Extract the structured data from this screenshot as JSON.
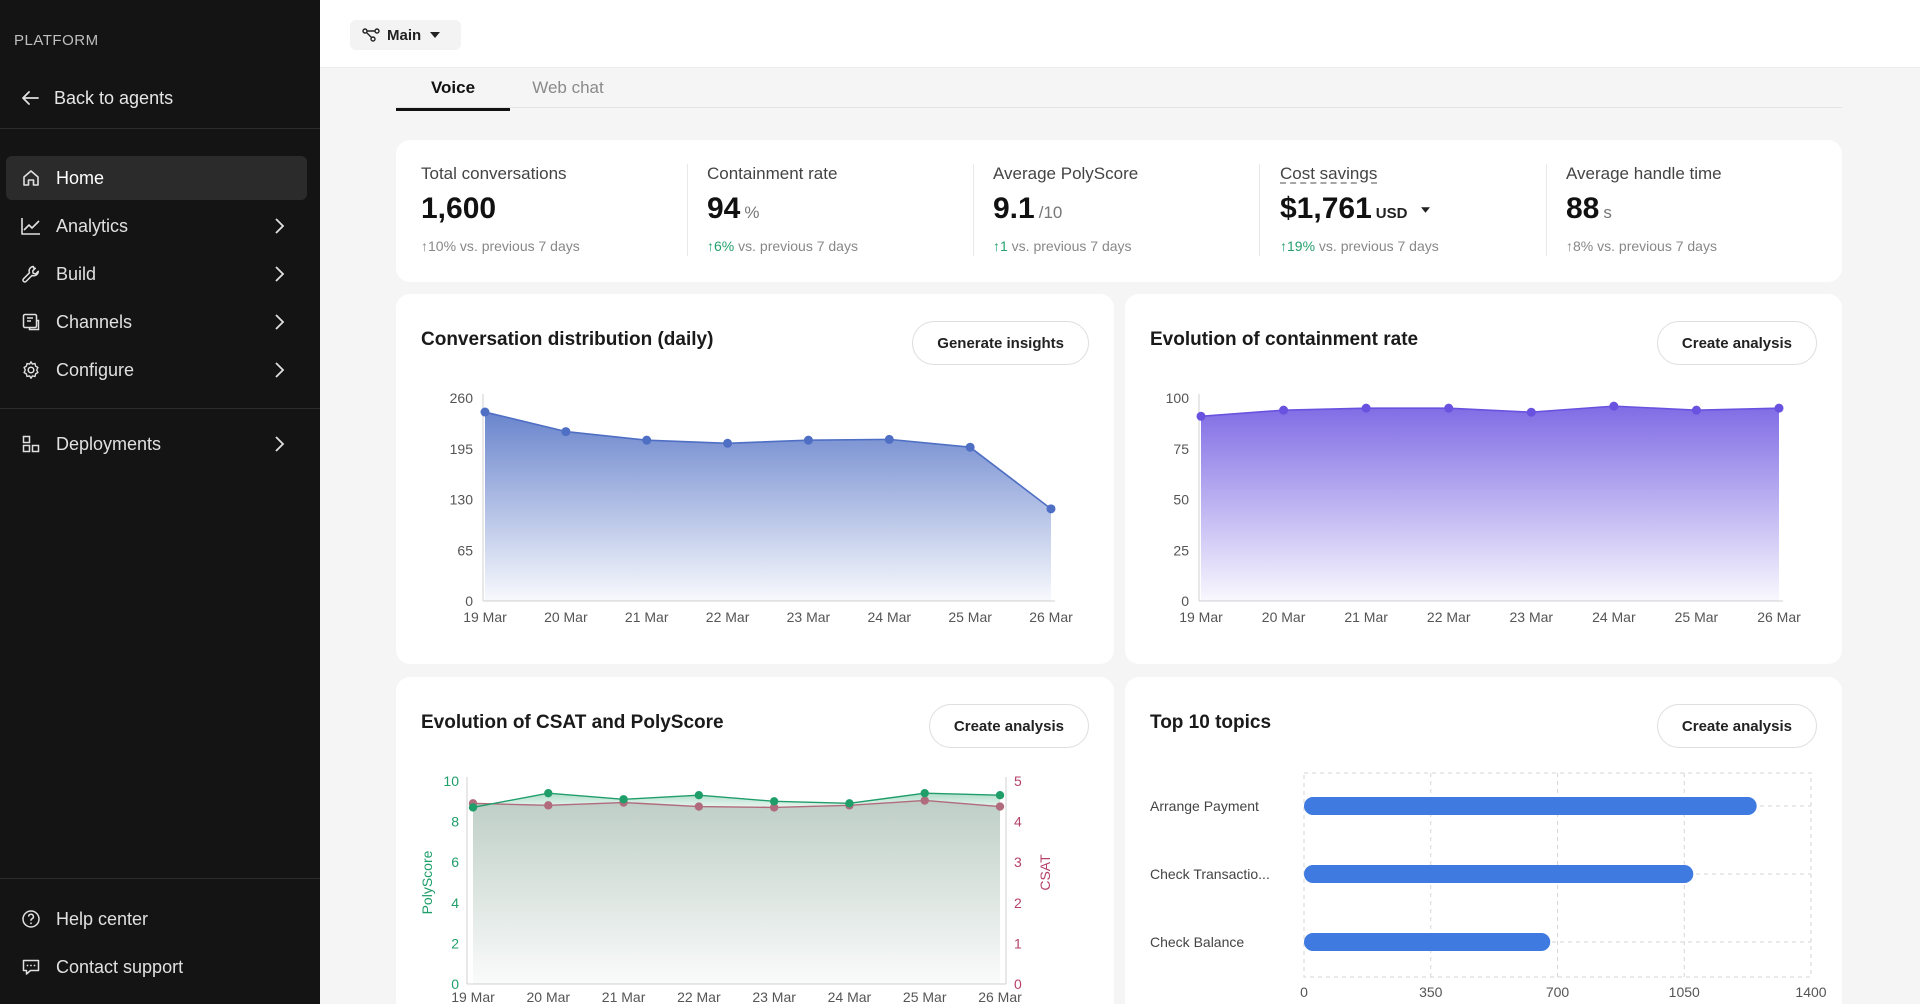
{
  "sidebar": {
    "platform_label": "PLATFORM",
    "back_label": "Back to agents",
    "items": [
      {
        "label": "Home",
        "icon": "home-icon",
        "active": true
      },
      {
        "label": "Analytics",
        "icon": "analytics-icon"
      },
      {
        "label": "Build",
        "icon": "wrench-icon"
      },
      {
        "label": "Channels",
        "icon": "channels-icon"
      },
      {
        "label": "Configure",
        "icon": "gear-icon"
      },
      {
        "label": "Deployments",
        "icon": "deployments-icon"
      }
    ],
    "footer": [
      {
        "label": "Help center",
        "icon": "help-icon"
      },
      {
        "label": "Contact support",
        "icon": "support-icon"
      }
    ]
  },
  "topbar": {
    "branch_label": "Main"
  },
  "tabs": [
    {
      "label": "Voice",
      "active": true
    },
    {
      "label": "Web chat"
    }
  ],
  "kpis": [
    {
      "label": "Total conversations",
      "value": "1,600",
      "unit": "",
      "change": "10%",
      "suffix": " vs. previous 7 days",
      "trend": "neutral"
    },
    {
      "label": "Containment rate",
      "value": "94",
      "unit": "%",
      "change": "6%",
      "suffix": " vs. previous 7 days",
      "trend": "positive"
    },
    {
      "label": "Average PolyScore",
      "value": "9.1",
      "unit": "/10",
      "change": "1",
      "suffix": " vs. previous 7 days",
      "trend": "positive"
    },
    {
      "label": "Cost savings",
      "value": "$1,761",
      "unit": "USD",
      "change": "19%",
      "suffix": " vs. previous 7 days",
      "trend": "positive"
    },
    {
      "label": "Average handle time",
      "value": "88",
      "unit": "s",
      "change": "8%",
      "suffix": " vs. previous 7 days",
      "trend": "neutral"
    }
  ],
  "cards": {
    "distribution": {
      "title": "Conversation distribution (daily)",
      "button": "Generate insights"
    },
    "containment": {
      "title": "Evolution of containment rate",
      "button": "Create analysis"
    },
    "csat": {
      "title": "Evolution of CSAT and PolyScore",
      "button": "Create analysis"
    },
    "topics": {
      "title": "Top 10 topics",
      "button": "Create analysis"
    }
  },
  "chart_data": [
    {
      "type": "area",
      "title": "Conversation distribution (daily)",
      "categories": [
        "19 Mar",
        "20 Mar",
        "21 Mar",
        "22 Mar",
        "23 Mar",
        "24 Mar",
        "25 Mar",
        "26 Mar"
      ],
      "values": [
        242,
        217,
        206,
        202,
        206,
        207,
        197,
        118
      ],
      "ylim": [
        0,
        260
      ],
      "yticks": [
        0,
        65,
        130,
        195,
        260
      ],
      "color": "#4f6fc4"
    },
    {
      "type": "area",
      "title": "Evolution of containment rate",
      "categories": [
        "19 Mar",
        "20 Mar",
        "21 Mar",
        "22 Mar",
        "23 Mar",
        "24 Mar",
        "25 Mar",
        "26 Mar"
      ],
      "values": [
        91,
        94,
        95,
        95,
        93,
        96,
        94,
        95
      ],
      "ylim": [
        0,
        100
      ],
      "yticks": [
        0,
        25,
        50,
        75,
        100
      ],
      "color": "#6a52e0"
    },
    {
      "type": "line",
      "title": "Evolution of CSAT and PolyScore",
      "categories": [
        "19 Mar",
        "20 Mar",
        "21 Mar",
        "22 Mar",
        "23 Mar",
        "24 Mar",
        "25 Mar",
        "26 Mar"
      ],
      "y_left": {
        "label": "PolyScore",
        "ticks": [
          0,
          2,
          4,
          6,
          8,
          10
        ],
        "range": [
          0,
          10
        ],
        "color": "#1f9e6a"
      },
      "y_right": {
        "label": "CSAT",
        "ticks": [
          0,
          1,
          2,
          3,
          4,
          5
        ],
        "range": [
          0,
          5
        ],
        "color": "#b5416a"
      },
      "series": [
        {
          "name": "PolyScore",
          "axis": "left",
          "values": [
            8.7,
            9.4,
            9.1,
            9.3,
            9.0,
            8.9,
            9.4,
            9.3
          ],
          "color": "#1f9e6a"
        },
        {
          "name": "CSAT",
          "axis": "right",
          "values": [
            4.45,
            4.4,
            4.47,
            4.37,
            4.35,
            4.4,
            4.52,
            4.37
          ],
          "color": "#b06b7c"
        }
      ]
    },
    {
      "type": "bar",
      "title": "Top 10 topics",
      "orientation": "horizontal",
      "categories": [
        "Arrange Payment",
        "Check Transactio...",
        "Check Balance"
      ],
      "values": [
        1250,
        1075,
        680
      ],
      "xlim": [
        0,
        1400
      ],
      "xticks": [
        0,
        350,
        700,
        1050,
        1400
      ],
      "color": "#3f7ae0"
    }
  ]
}
